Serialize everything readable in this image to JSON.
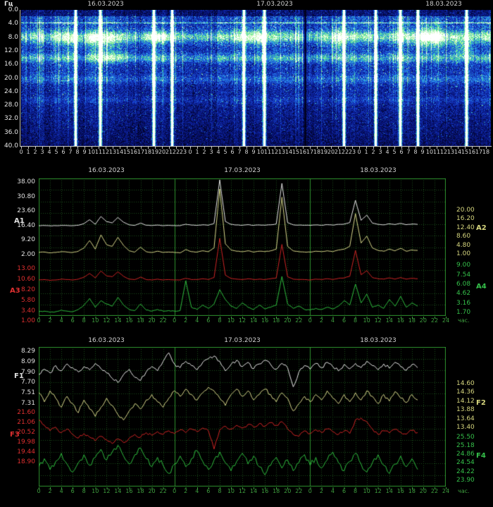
{
  "colors": {
    "white_trace": "#e8e8e8",
    "yellow_trace": "#d8d88a",
    "red_trace": "#cf2525",
    "green_trace": "#2fbf3f",
    "label_white": "#e0e0e0",
    "label_yellow": "#d6d67e",
    "label_red": "#e03030",
    "label_green": "#35c04a",
    "grid": "#1b4d1b",
    "grid_day": "#2d8f2d",
    "tick_green": "#3fa03f",
    "date": "#cfcfcf",
    "axis_white": "#c8c8c8"
  },
  "spectrogram": {
    "ylabel_text": "Гц",
    "dates": [
      "16.03.2023",
      "17.03.2023",
      "18.03.2023"
    ],
    "freq_labels": [
      "0.0",
      "4.0",
      "8.0",
      "12.0",
      "16.0",
      "20.0",
      "24.0",
      "28.0",
      "32.0",
      "36.0",
      "40.0"
    ],
    "hour_labels": [
      "0",
      "1",
      "2",
      "3",
      "4",
      "5",
      "6",
      "7",
      "8",
      "9",
      "10",
      "11",
      "12",
      "13",
      "14",
      "15",
      "16",
      "17",
      "18",
      "19",
      "20",
      "21",
      "22",
      "23",
      "0",
      "1",
      "2",
      "3",
      "4",
      "5",
      "6",
      "7",
      "8",
      "9",
      "10",
      "11",
      "12",
      "13",
      "14",
      "15",
      "16",
      "17",
      "18",
      "19",
      "20",
      "21",
      "22",
      "23",
      "0",
      "1",
      "2",
      "3",
      "4",
      "5",
      "6",
      "7",
      "8",
      "9",
      "10",
      "11",
      "12",
      "13",
      "14",
      "15",
      "16",
      "17",
      "18"
    ]
  },
  "amp_panel": {
    "dates": [
      "16.03.2023",
      "17.03.2023",
      "18.03.2023"
    ],
    "hour_labels": [
      "0",
      "2",
      "4",
      "6",
      "8",
      "10",
      "12",
      "14",
      "16",
      "18",
      "20",
      "22",
      "0",
      "2",
      "4",
      "6",
      "8",
      "10",
      "12",
      "14",
      "16",
      "18",
      "20",
      "22",
      "0",
      "2",
      "4",
      "6",
      "8",
      "10",
      "12",
      "14",
      "16",
      "18",
      "20",
      "22",
      "24"
    ],
    "unit_label": "час."
  },
  "freq_panel": {
    "dates": [
      "16.03.2023",
      "17.03.2023",
      "18.03.2023"
    ],
    "hour_labels": [
      "0",
      "2",
      "4",
      "6",
      "8",
      "10",
      "12",
      "14",
      "16",
      "18",
      "20",
      "22",
      "0",
      "2",
      "4",
      "6",
      "8",
      "10",
      "12",
      "14",
      "16",
      "18",
      "20",
      "22",
      "0",
      "2",
      "4",
      "6",
      "8",
      "10",
      "12",
      "14",
      "16",
      "18",
      "20",
      "22",
      "24"
    ],
    "unit_label": "час."
  },
  "chart_data": [
    {
      "type": "heatmap",
      "title": "ELF magnetic field spectrogram 16.03.2023 - 18.03.2023",
      "x_unit": "час",
      "x_range_hours": [
        0,
        66.7
      ],
      "y_unit": "Гц",
      "y_range_hz": [
        0,
        40
      ],
      "dates": [
        "16.03.2023",
        "17.03.2023",
        "18.03.2023"
      ],
      "resonance_bands": [
        {
          "hz": 7.8,
          "sigma_hz": 1.6,
          "gain": 0.55
        },
        {
          "hz": 14.0,
          "sigma_hz": 1.2,
          "gain": 0.38
        },
        {
          "hz": 20.2,
          "sigma_hz": 1.2,
          "gain": 0.22
        },
        {
          "hz": 26.3,
          "sigma_hz": 1.0,
          "gain": 0.12
        }
      ],
      "interference_line_hz": 3.7,
      "bright_events_hours": [
        7.7,
        11.2,
        18.8,
        21.4,
        31.6,
        34.5,
        45.8,
        50.3,
        53.8,
        56.3,
        63.2
      ],
      "dark_event_hours": [
        40.3
      ],
      "patches": [
        {
          "hour": 11,
          "hz": 9,
          "dh": 5,
          "dhz": 2.5,
          "gain": 0.28
        },
        {
          "hour": 13,
          "hz": 13.5,
          "dh": 3,
          "dhz": 1.8,
          "gain": 0.3
        },
        {
          "hour": 19.5,
          "hz": 8,
          "dh": 2,
          "dhz": 1.5,
          "gain": 0.3
        },
        {
          "hour": 33,
          "hz": 8,
          "dh": 2,
          "dhz": 2.5,
          "gain": 0.35
        },
        {
          "hour": 44.5,
          "hz": 9,
          "dh": 1.2,
          "dhz": 4,
          "gain": 0.3
        },
        {
          "hour": 58,
          "hz": 8,
          "dh": 2.5,
          "dhz": 3.5,
          "gain": 0.5
        },
        {
          "hour": 62.5,
          "hz": 11,
          "dh": 1.5,
          "dhz": 3,
          "gain": 0.3
        }
      ]
    },
    {
      "type": "line",
      "title": "Амплитуды A1-A4",
      "x_unit": "час",
      "x_step_hours": 1,
      "dates": [
        "16.03.2023",
        "17.03.2023",
        "18.03.2023"
      ],
      "series": [
        {
          "name": "A1",
          "color_key": "white_trace",
          "label_color_key": "label_white",
          "axis_labels": [
            "38.00",
            "30.80",
            "23.60",
            "16.40",
            "9.20",
            "2.00"
          ],
          "v_base": 4,
          "y_base": 320,
          "v_top": 36.5,
          "y_top": 255,
          "jitter": 0.12,
          "values": [
            4.0,
            4.1,
            3.9,
            4.0,
            4.2,
            4.1,
            4.0,
            4.3,
            5.5,
            8.2,
            5.0,
            10.5,
            6.8,
            6.0,
            9.8,
            6.4,
            4.6,
            4.2,
            5.8,
            4.3,
            4.1,
            4.4,
            4.0,
            4.2,
            4.1,
            4.0,
            5.0,
            4.4,
            4.2,
            4.6,
            4.3,
            5.6,
            36.5,
            7.0,
            4.9,
            4.5,
            4.3,
            4.7,
            4.2,
            4.5,
            4.3,
            4.6,
            5.2,
            34.0,
            6.2,
            4.6,
            4.4,
            4.3,
            4.2,
            4.5,
            4.3,
            4.7,
            4.4,
            4.9,
            5.1,
            6.2,
            22.0,
            7.8,
            11.5,
            5.8,
            4.9,
            4.6,
            5.3,
            4.8,
            5.6,
            4.7,
            5.1,
            4.9
          ]
        },
        {
          "name": "A2",
          "color_key": "yellow_trace",
          "label_color_key": "label_yellow",
          "axis_labels": [
            "20.00",
            "16.20",
            "12.40",
            "8.60",
            "4.80",
            "1.00"
          ],
          "v_base": 3.5,
          "y_base": 358,
          "v_top": 19.0,
          "y_top": 268,
          "jitter": 0.05,
          "values": [
            3.5,
            3.6,
            3.4,
            3.5,
            3.7,
            3.6,
            3.5,
            3.8,
            4.6,
            6.4,
            4.3,
            7.8,
            5.4,
            5.0,
            7.2,
            5.2,
            3.9,
            3.6,
            4.8,
            3.7,
            3.5,
            3.8,
            3.5,
            3.6,
            3.5,
            3.4,
            4.2,
            3.7,
            3.6,
            3.9,
            3.7,
            4.6,
            19.0,
            5.6,
            4.1,
            3.8,
            3.7,
            3.9,
            3.6,
            3.8,
            3.7,
            3.9,
            4.3,
            17.0,
            5.0,
            3.9,
            3.7,
            3.6,
            3.6,
            3.8,
            3.7,
            3.9,
            3.7,
            4.1,
            4.3,
            5.0,
            13.0,
            5.8,
            7.5,
            4.6,
            4.0,
            3.8,
            4.3,
            3.9,
            4.5,
            3.8,
            4.1,
            4.0
          ]
        },
        {
          "name": "A3",
          "color_key": "red_trace",
          "label_color_key": "label_red",
          "axis_labels": [
            "13.00",
            "10.60",
            "8.20",
            "5.80",
            "3.40",
            "1.00"
          ],
          "v_base": 2.2,
          "y_base": 397,
          "v_top": 12.5,
          "y_top": 338,
          "jitter": 0.04,
          "values": [
            2.2,
            2.3,
            2.1,
            2.2,
            2.4,
            2.3,
            2.2,
            2.4,
            2.9,
            3.8,
            2.7,
            4.4,
            3.2,
            3.0,
            4.2,
            3.1,
            2.4,
            2.3,
            2.9,
            2.3,
            2.2,
            2.4,
            2.2,
            2.3,
            2.2,
            2.2,
            2.6,
            2.3,
            2.3,
            2.5,
            2.3,
            2.8,
            12.5,
            3.4,
            2.6,
            2.4,
            2.3,
            2.5,
            2.3,
            2.4,
            2.3,
            2.5,
            2.7,
            11.0,
            3.0,
            2.4,
            2.3,
            2.3,
            2.2,
            2.4,
            2.3,
            2.5,
            2.3,
            2.6,
            2.7,
            3.1,
            9.5,
            3.5,
            4.5,
            2.8,
            2.5,
            2.4,
            2.7,
            2.4,
            2.8,
            2.4,
            2.6,
            2.5
          ]
        },
        {
          "name": "A4",
          "color_key": "green_trace",
          "label_color_key": "label_green",
          "axis_labels": [
            "9.00",
            "7.54",
            "6.08",
            "4.62",
            "3.16",
            "1.70"
          ],
          "v_base": 2.2,
          "y_base": 442,
          "v_top": 8.6,
          "y_top": 392,
          "jitter": 0.07,
          "values": [
            2.2,
            2.3,
            2.1,
            2.2,
            2.5,
            2.3,
            2.2,
            2.6,
            3.4,
            4.6,
            3.0,
            4.2,
            3.6,
            3.2,
            4.8,
            3.4,
            2.6,
            2.4,
            3.6,
            2.5,
            2.3,
            2.6,
            2.3,
            2.4,
            2.3,
            2.4,
            7.8,
            3.0,
            2.6,
            3.4,
            2.8,
            3.6,
            6.2,
            4.4,
            3.2,
            2.8,
            3.8,
            3.0,
            2.6,
            3.4,
            2.7,
            3.0,
            3.4,
            8.6,
            3.6,
            2.8,
            3.2,
            2.6,
            2.5,
            2.8,
            2.6,
            3.0,
            2.7,
            3.2,
            4.2,
            3.4,
            7.2,
            3.8,
            5.4,
            3.0,
            3.4,
            2.8,
            4.4,
            3.2,
            5.0,
            3.0,
            3.8,
            3.2
          ]
        }
      ]
    },
    {
      "type": "line",
      "title": "Частоты F1-F4",
      "x_unit": "час",
      "x_step_hours": 1,
      "dates": [
        "16.03.2023",
        "17.03.2023",
        "18.03.2023"
      ],
      "series": [
        {
          "name": "F1",
          "color_key": "white_trace",
          "label_color_key": "label_white",
          "axis_labels": [
            "8.29",
            "8.09",
            "7.90",
            "7.70",
            "7.51",
            "7.31"
          ],
          "v_base": 7.31,
          "y_base": 572,
          "v_top": 8.29,
          "y_top": 498,
          "jitter": 0.03,
          "values": [
            7.85,
            7.95,
            7.88,
            8.02,
            7.92,
            8.05,
            7.98,
            7.9,
            8.0,
            7.94,
            8.06,
            7.96,
            7.88,
            7.78,
            7.7,
            7.85,
            7.95,
            7.8,
            7.74,
            7.9,
            8.0,
            7.92,
            8.1,
            8.26,
            8.05,
            7.98,
            8.1,
            8.02,
            7.94,
            8.08,
            8.15,
            8.2,
            8.1,
            7.92,
            8.04,
            8.12,
            8.0,
            8.08,
            7.96,
            8.05,
            8.12,
            8.04,
            7.95,
            8.06,
            7.98,
            7.62,
            7.9,
            8.02,
            7.95,
            8.06,
            7.98,
            8.08,
            8.0,
            7.92,
            8.04,
            7.96,
            8.06,
            7.98,
            8.1,
            8.02,
            7.94,
            8.05,
            7.97,
            8.08,
            8.0,
            7.93,
            8.04,
            7.98
          ]
        },
        {
          "name": "F2",
          "color_key": "yellow_trace",
          "label_color_key": "label_yellow",
          "axis_labels": [
            "14.60",
            "14.36",
            "14.12",
            "13.88",
            "13.64",
            "13.40"
          ],
          "v_base": 13.4,
          "y_base": 606,
          "v_top": 14.6,
          "y_top": 544,
          "jitter": 0.045,
          "values": [
            14.35,
            14.1,
            14.4,
            14.2,
            13.95,
            14.25,
            14.05,
            13.8,
            14.15,
            13.9,
            13.7,
            13.95,
            14.2,
            14.0,
            13.75,
            13.6,
            13.85,
            14.05,
            13.9,
            14.15,
            14.3,
            14.1,
            13.95,
            14.2,
            14.4,
            14.25,
            14.45,
            14.3,
            14.15,
            14.35,
            14.5,
            14.4,
            14.2,
            14.0,
            14.3,
            14.45,
            14.25,
            14.4,
            14.15,
            14.3,
            14.45,
            14.3,
            14.1,
            14.35,
            14.2,
            13.85,
            14.05,
            14.25,
            14.1,
            14.3,
            14.15,
            14.4,
            14.2,
            14.05,
            14.3,
            14.1,
            14.35,
            14.15,
            14.4,
            14.25,
            14.05,
            14.3,
            14.12,
            14.38,
            14.2,
            14.08,
            14.3,
            14.15
          ]
        },
        {
          "name": "F3",
          "color_key": "red_trace",
          "label_color_key": "label_red",
          "axis_labels": [
            "21.60",
            "21.06",
            "20.52",
            "19.98",
            "19.44",
            "18.90"
          ],
          "v_base": 18.9,
          "y_base": 655,
          "v_top": 21.6,
          "y_top": 585,
          "jitter": 0.08,
          "values": [
            21.2,
            20.9,
            20.6,
            20.8,
            20.5,
            20.7,
            20.4,
            20.2,
            20.45,
            20.25,
            20.05,
            20.3,
            20.1,
            19.9,
            20.15,
            19.95,
            20.2,
            20.4,
            20.25,
            20.5,
            20.35,
            20.55,
            20.4,
            20.6,
            20.45,
            20.65,
            20.5,
            20.7,
            20.55,
            20.75,
            20.6,
            19.6,
            20.65,
            20.85,
            20.7,
            20.9,
            20.75,
            20.95,
            20.8,
            21.0,
            20.85,
            21.05,
            20.9,
            21.1,
            20.7,
            20.4,
            20.3,
            20.6,
            20.45,
            20.65,
            20.5,
            20.7,
            20.55,
            20.4,
            20.6,
            20.45,
            21.2,
            21.3,
            21.1,
            20.7,
            20.4,
            20.6,
            20.48,
            20.68,
            20.52,
            20.42,
            20.62,
            20.5
          ]
        },
        {
          "name": "F4",
          "color_key": "green_trace",
          "label_color_key": "label_green",
          "axis_labels": [
            "25.50",
            "25.18",
            "24.86",
            "24.54",
            "24.22",
            "23.90"
          ],
          "v_base": 23.9,
          "y_base": 681,
          "v_top": 25.5,
          "y_top": 620,
          "jitter": 0.1,
          "values": [
            24.4,
            24.7,
            24.3,
            24.6,
            24.9,
            24.5,
            24.2,
            24.55,
            24.85,
            24.45,
            24.75,
            25.05,
            24.65,
            24.95,
            25.2,
            24.8,
            24.5,
            24.85,
            25.1,
            24.7,
            24.4,
            24.75,
            24.45,
            24.15,
            24.5,
            24.8,
            24.4,
            24.7,
            25.0,
            24.6,
            24.3,
            24.65,
            24.95,
            24.55,
            24.25,
            24.6,
            24.9,
            24.5,
            24.8,
            24.4,
            24.1,
            24.45,
            24.75,
            24.35,
            24.65,
            24.25,
            24.55,
            24.85,
            24.45,
            24.75,
            24.35,
            24.65,
            24.95,
            24.55,
            24.25,
            24.6,
            24.9,
            24.5,
            24.2,
            24.55,
            24.85,
            24.45,
            24.15,
            24.5,
            24.8,
            24.4,
            24.7,
            24.3
          ]
        }
      ]
    }
  ]
}
